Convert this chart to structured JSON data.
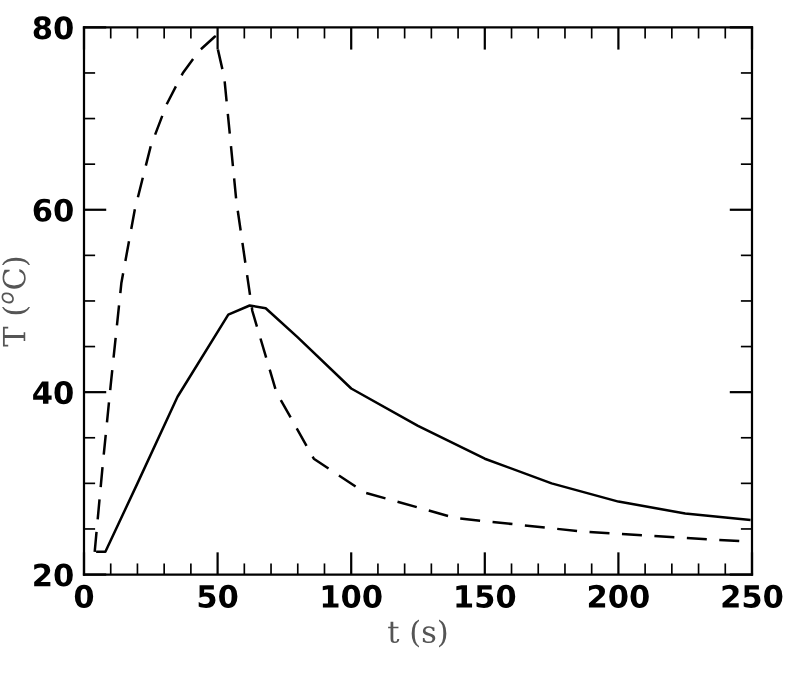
{
  "chart_data": {
    "type": "line",
    "xlabel": "t (s)",
    "ylabel": "T ($^{o}$C)",
    "xlim": [
      0,
      250
    ],
    "ylim": [
      20,
      80
    ],
    "xticks": [
      0,
      50,
      100,
      150,
      200,
      250
    ],
    "yticks": [
      20,
      40,
      60,
      80
    ],
    "grid": false,
    "legend": false,
    "series": [
      {
        "color": "#000000",
        "line_style": "solid",
        "x": [
          5,
          8,
          20,
          35,
          54,
          62,
          68,
          80,
          100,
          125,
          150,
          175,
          200,
          225,
          249
        ],
        "values": [
          22.5,
          22.5,
          30,
          39.5,
          48.5,
          49.5,
          49.2,
          46,
          40.4,
          36.3,
          32.7,
          30,
          28,
          26.7,
          26
        ]
      },
      {
        "color": "#000000",
        "line_style": "dashed",
        "x": [
          4,
          7,
          10,
          14,
          19,
          25,
          31,
          37,
          43,
          49,
          52.5,
          57,
          63,
          72,
          86,
          105,
          139,
          187,
          249
        ],
        "values": [
          22.5,
          32,
          40.8,
          52,
          60,
          67,
          71.6,
          75,
          77.4,
          79,
          74.5,
          61,
          48.9,
          40,
          32.7,
          29,
          26.2,
          24.7,
          23.6
        ]
      }
    ]
  }
}
